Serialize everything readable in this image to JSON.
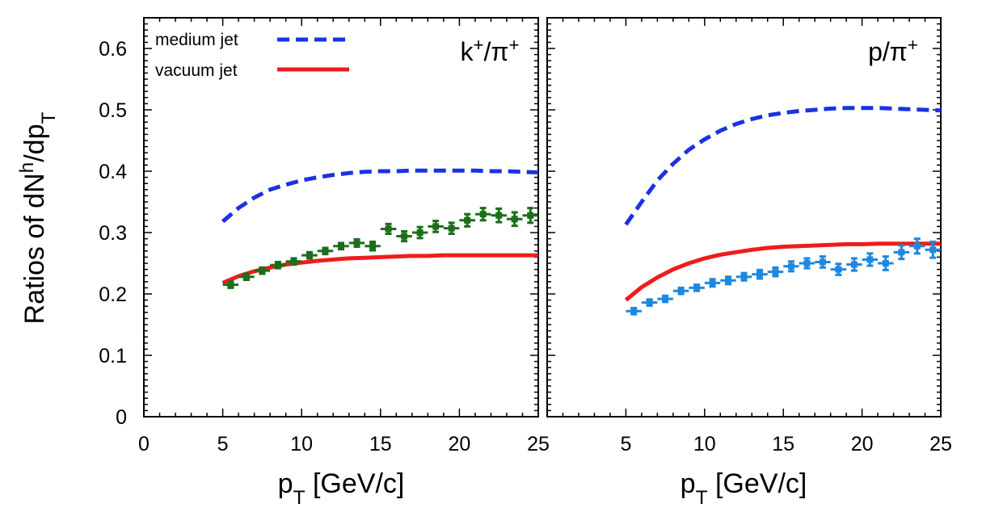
{
  "chart_data": {
    "type": "line",
    "ylabel": "Ratios of dN^h/dp_T",
    "ylim": [
      0,
      0.65
    ],
    "yticks": [
      "0",
      "0.1",
      "0.2",
      "0.3",
      "0.4",
      "0.5",
      "0.6"
    ],
    "grid": false,
    "legend_position": "top-left",
    "legend": [
      {
        "label": "medium jet",
        "color": "#1a33e0",
        "style": "dashed"
      },
      {
        "label": "vacuum jet",
        "color": "#ee1c1c",
        "style": "solid"
      }
    ],
    "panels": [
      {
        "id": "left",
        "label": "k+/π+",
        "xlabel": "p_T [GeV/c]",
        "xlim": [
          0,
          25
        ],
        "xticks": [
          "0",
          "5",
          "10",
          "15",
          "20",
          "25"
        ],
        "series": [
          {
            "name": "medium jet",
            "style": "dashed",
            "color": "#1a33e0",
            "x": [
              5,
              6,
              7,
              8,
              9,
              10,
              11,
              12,
              13,
              14,
              15,
              16,
              17,
              18,
              19,
              20,
              21,
              22,
              23,
              24,
              25
            ],
            "y": [
              0.318,
              0.34,
              0.357,
              0.37,
              0.378,
              0.385,
              0.39,
              0.394,
              0.397,
              0.399,
              0.4,
              0.4,
              0.401,
              0.401,
              0.401,
              0.401,
              0.401,
              0.4,
              0.4,
              0.399,
              0.398
            ]
          },
          {
            "name": "vacuum jet",
            "style": "solid",
            "color": "#ee1c1c",
            "x": [
              5,
              6,
              7,
              8,
              9,
              10,
              11,
              12,
              13,
              14,
              15,
              16,
              17,
              18,
              19,
              20,
              21,
              22,
              23,
              24,
              25
            ],
            "y": [
              0.218,
              0.229,
              0.237,
              0.243,
              0.248,
              0.251,
              0.254,
              0.256,
              0.258,
              0.259,
              0.26,
              0.261,
              0.262,
              0.262,
              0.263,
              0.263,
              0.263,
              0.263,
              0.263,
              0.263,
              0.263
            ]
          },
          {
            "name": "data",
            "style": "errorbar",
            "color": "#1c6e1c",
            "x": [
              5.5,
              6.5,
              7.5,
              8.5,
              9.5,
              10.5,
              11.5,
              12.5,
              13.5,
              14.5,
              15.5,
              16.5,
              17.5,
              18.5,
              19.5,
              20.5,
              21.5,
              22.5,
              23.5,
              24.5
            ],
            "y": [
              0.215,
              0.228,
              0.238,
              0.247,
              0.253,
              0.263,
              0.27,
              0.278,
              0.283,
              0.278,
              0.306,
              0.294,
              0.3,
              0.31,
              0.307,
              0.32,
              0.33,
              0.328,
              0.322,
              0.328
            ],
            "err": [
              0.005,
              0.005,
              0.005,
              0.005,
              0.005,
              0.005,
              0.005,
              0.005,
              0.006,
              0.007,
              0.008,
              0.008,
              0.009,
              0.009,
              0.009,
              0.01,
              0.01,
              0.011,
              0.011,
              0.012
            ]
          }
        ]
      },
      {
        "id": "right",
        "label": "p/π+",
        "xlabel": "p_T [GeV/c]",
        "xlim": [
          0,
          25
        ],
        "xticks": [
          "5",
          "10",
          "15",
          "20",
          "25"
        ],
        "series": [
          {
            "name": "medium jet",
            "style": "dashed",
            "color": "#1a33e0",
            "x": [
              5,
              6,
              7,
              8,
              9,
              10,
              11,
              12,
              13,
              14,
              15,
              16,
              17,
              18,
              19,
              20,
              21,
              22,
              23,
              24,
              25
            ],
            "y": [
              0.313,
              0.35,
              0.385,
              0.412,
              0.435,
              0.452,
              0.466,
              0.477,
              0.485,
              0.491,
              0.495,
              0.498,
              0.5,
              0.502,
              0.503,
              0.503,
              0.503,
              0.502,
              0.501,
              0.5,
              0.499
            ]
          },
          {
            "name": "vacuum jet",
            "style": "solid",
            "color": "#ee1c1c",
            "x": [
              5,
              6,
              7,
              8,
              9,
              10,
              11,
              12,
              13,
              14,
              15,
              16,
              17,
              18,
              19,
              20,
              21,
              22,
              23,
              24,
              25
            ],
            "y": [
              0.19,
              0.211,
              0.227,
              0.24,
              0.25,
              0.258,
              0.264,
              0.268,
              0.272,
              0.275,
              0.277,
              0.278,
              0.279,
              0.28,
              0.281,
              0.281,
              0.282,
              0.282,
              0.282,
              0.282,
              0.282
            ]
          },
          {
            "name": "data",
            "style": "errorbar",
            "color": "#1e88e0",
            "x": [
              5.5,
              6.5,
              7.5,
              8.5,
              9.5,
              10.5,
              11.5,
              12.5,
              13.5,
              14.5,
              15.5,
              16.5,
              17.5,
              18.5,
              19.5,
              20.5,
              21.5,
              22.5,
              23.5,
              24.5
            ],
            "y": [
              0.172,
              0.186,
              0.192,
              0.205,
              0.21,
              0.218,
              0.222,
              0.228,
              0.232,
              0.236,
              0.245,
              0.25,
              0.252,
              0.24,
              0.248,
              0.256,
              0.25,
              0.268,
              0.278,
              0.272
            ],
            "err": [
              0.005,
              0.005,
              0.005,
              0.005,
              0.005,
              0.006,
              0.006,
              0.006,
              0.007,
              0.007,
              0.008,
              0.008,
              0.009,
              0.009,
              0.01,
              0.01,
              0.011,
              0.011,
              0.012,
              0.013
            ]
          }
        ]
      }
    ]
  }
}
